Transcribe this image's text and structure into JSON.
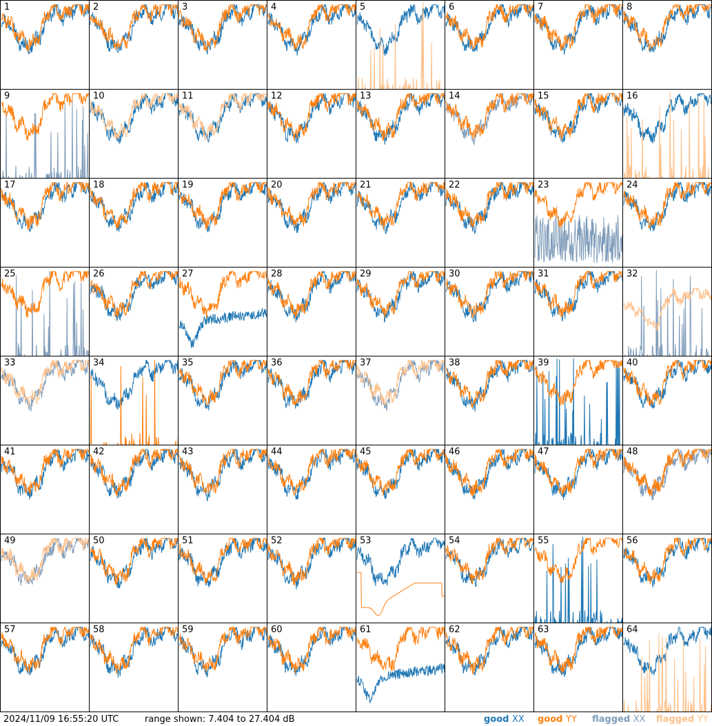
{
  "footer": {
    "timestamp": "2024/11/09 16:55:20 UTC",
    "range_text": "range shown: 7.404 to 27.404 dB"
  },
  "legend": [
    {
      "label": "good",
      "pol": "XX",
      "color": "#1f77b4"
    },
    {
      "label": "good",
      "pol": "YY",
      "color": "#ff7f0e"
    },
    {
      "label": "flagged",
      "pol": "XX",
      "color": "#7f9cba"
    },
    {
      "label": "flagged",
      "pol": "YY",
      "color": "#ffc08a"
    }
  ],
  "chart_data": {
    "type": "line",
    "layout": "8x8 small multiples",
    "ylim": [
      7.404,
      27.404
    ],
    "yunit": "dB",
    "series_names": [
      "XX",
      "YY"
    ],
    "colors": {
      "good_xx": "#1f77b4",
      "good_yy": "#ff7f0e",
      "flagged_xx": "#7f9cba",
      "flagged_yy": "#ffc08a"
    },
    "panels": [
      {
        "id": "1",
        "xx": "good",
        "yy": "good",
        "mode": "normal"
      },
      {
        "id": "2",
        "xx": "good",
        "yy": "good",
        "mode": "normal"
      },
      {
        "id": "3",
        "xx": "good",
        "yy": "good",
        "mode": "normal"
      },
      {
        "id": "4",
        "xx": "good",
        "yy": "good",
        "mode": "normal"
      },
      {
        "id": "5",
        "xx": "good",
        "yy": "flagged",
        "mode": "yy_spiky"
      },
      {
        "id": "6",
        "xx": "good",
        "yy": "good",
        "mode": "normal"
      },
      {
        "id": "7",
        "xx": "good",
        "yy": "good",
        "mode": "normal"
      },
      {
        "id": "8",
        "xx": "good",
        "yy": "good",
        "mode": "normal"
      },
      {
        "id": "9",
        "xx": "flagged",
        "yy": "good",
        "mode": "xx_spiky"
      },
      {
        "id": "10",
        "xx": "good",
        "yy": "flagged",
        "mode": "normal"
      },
      {
        "id": "11",
        "xx": "good",
        "yy": "flagged",
        "mode": "normal"
      },
      {
        "id": "12",
        "xx": "good",
        "yy": "good",
        "mode": "normal"
      },
      {
        "id": "13",
        "xx": "good",
        "yy": "good",
        "mode": "normal"
      },
      {
        "id": "14",
        "xx": "flagged",
        "yy": "good",
        "mode": "normal"
      },
      {
        "id": "15",
        "xx": "good",
        "yy": "good",
        "mode": "normal"
      },
      {
        "id": "16",
        "xx": "good",
        "yy": "flagged",
        "mode": "yy_spiky"
      },
      {
        "id": "17",
        "xx": "good",
        "yy": "good",
        "mode": "normal"
      },
      {
        "id": "18",
        "xx": "good",
        "yy": "good",
        "mode": "normal"
      },
      {
        "id": "19",
        "xx": "good",
        "yy": "good",
        "mode": "normal"
      },
      {
        "id": "20",
        "xx": "good",
        "yy": "good",
        "mode": "normal"
      },
      {
        "id": "21",
        "xx": "good",
        "yy": "good",
        "mode": "normal"
      },
      {
        "id": "22",
        "xx": "good",
        "yy": "good",
        "mode": "normal"
      },
      {
        "id": "23",
        "xx": "flagged",
        "yy": "good",
        "mode": "xx_low"
      },
      {
        "id": "24",
        "xx": "good",
        "yy": "good",
        "mode": "normal"
      },
      {
        "id": "25",
        "xx": "flagged",
        "yy": "good",
        "mode": "xx_spiky"
      },
      {
        "id": "26",
        "xx": "good",
        "yy": "good",
        "mode": "normal"
      },
      {
        "id": "27",
        "xx": "good",
        "yy": "good",
        "mode": "xx_dip"
      },
      {
        "id": "28",
        "xx": "good",
        "yy": "good",
        "mode": "normal"
      },
      {
        "id": "29",
        "xx": "good",
        "yy": "good",
        "mode": "normal"
      },
      {
        "id": "30",
        "xx": "good",
        "yy": "good",
        "mode": "normal"
      },
      {
        "id": "31",
        "xx": "good",
        "yy": "good",
        "mode": "normal"
      },
      {
        "id": "32",
        "xx": "flagged",
        "yy": "flagged",
        "mode": "both_flag_spiky"
      },
      {
        "id": "33",
        "xx": "flagged",
        "yy": "flagged",
        "mode": "normal"
      },
      {
        "id": "34",
        "xx": "good",
        "yy": "good",
        "mode": "yy_spiky"
      },
      {
        "id": "35",
        "xx": "good",
        "yy": "good",
        "mode": "normal"
      },
      {
        "id": "36",
        "xx": "good",
        "yy": "good",
        "mode": "normal"
      },
      {
        "id": "37",
        "xx": "flagged",
        "yy": "flagged",
        "mode": "normal"
      },
      {
        "id": "38",
        "xx": "good",
        "yy": "good",
        "mode": "normal"
      },
      {
        "id": "39",
        "xx": "good",
        "yy": "good",
        "mode": "xx_spiky"
      },
      {
        "id": "40",
        "xx": "good",
        "yy": "good",
        "mode": "normal"
      },
      {
        "id": "41",
        "xx": "good",
        "yy": "good",
        "mode": "normal"
      },
      {
        "id": "42",
        "xx": "good",
        "yy": "good",
        "mode": "normal"
      },
      {
        "id": "43",
        "xx": "good",
        "yy": "good",
        "mode": "normal"
      },
      {
        "id": "44",
        "xx": "good",
        "yy": "good",
        "mode": "normal"
      },
      {
        "id": "45",
        "xx": "good",
        "yy": "good",
        "mode": "normal"
      },
      {
        "id": "46",
        "xx": "good",
        "yy": "good",
        "mode": "normal"
      },
      {
        "id": "47",
        "xx": "good",
        "yy": "good",
        "mode": "normal"
      },
      {
        "id": "48",
        "xx": "flagged",
        "yy": "good",
        "mode": "normal"
      },
      {
        "id": "49",
        "xx": "flagged",
        "yy": "flagged",
        "mode": "normal"
      },
      {
        "id": "50",
        "xx": "good",
        "yy": "good",
        "mode": "normal"
      },
      {
        "id": "51",
        "xx": "good",
        "yy": "good",
        "mode": "normal"
      },
      {
        "id": "52",
        "xx": "good",
        "yy": "good",
        "mode": "normal"
      },
      {
        "id": "53",
        "xx": "good",
        "yy": "good",
        "mode": "yy_smooth"
      },
      {
        "id": "54",
        "xx": "good",
        "yy": "good",
        "mode": "normal"
      },
      {
        "id": "55",
        "xx": "good",
        "yy": "good",
        "mode": "xx_spiky"
      },
      {
        "id": "56",
        "xx": "good",
        "yy": "good",
        "mode": "normal"
      },
      {
        "id": "57",
        "xx": "good",
        "yy": "good",
        "mode": "normal"
      },
      {
        "id": "58",
        "xx": "good",
        "yy": "good",
        "mode": "normal"
      },
      {
        "id": "59",
        "xx": "good",
        "yy": "good",
        "mode": "normal"
      },
      {
        "id": "60",
        "xx": "good",
        "yy": "good",
        "mode": "normal"
      },
      {
        "id": "61",
        "xx": "good",
        "yy": "good",
        "mode": "xx_dip"
      },
      {
        "id": "62",
        "xx": "good",
        "yy": "good",
        "mode": "normal"
      },
      {
        "id": "63",
        "xx": "good",
        "yy": "good",
        "mode": "normal"
      },
      {
        "id": "64",
        "xx": "good",
        "yy": "flagged",
        "mode": "yy_spiky"
      }
    ]
  }
}
